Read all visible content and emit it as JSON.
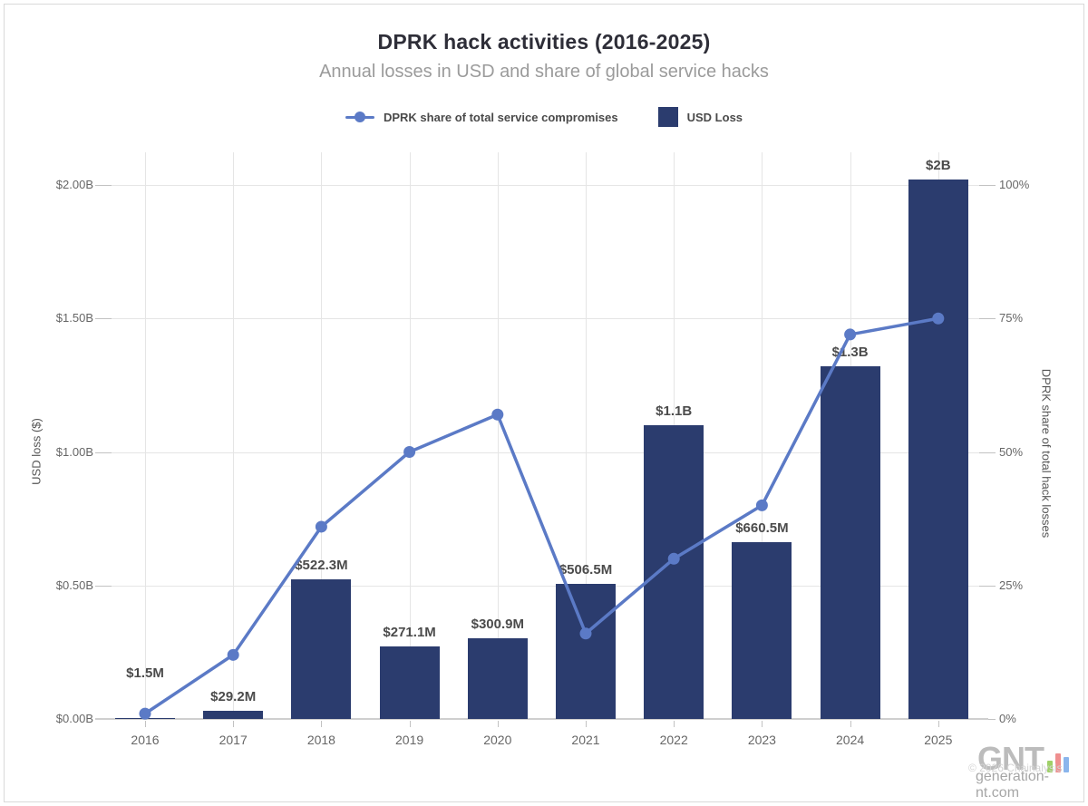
{
  "chart_data": {
    "type": "bar",
    "subtype": "combo-bar-line-dual-axis",
    "title": "DPRK hack activities (2016-2025)",
    "subtitle": "Annual losses in USD and share of global service hacks",
    "categories": [
      "2016",
      "2017",
      "2018",
      "2019",
      "2020",
      "2021",
      "2022",
      "2023",
      "2024",
      "2025"
    ],
    "series": [
      {
        "name": "DPRK share of total service compromises",
        "type": "line",
        "axis": "right",
        "color": "#5b7ac6",
        "values_percent": [
          1,
          12,
          36,
          50,
          57,
          16,
          30,
          40,
          72,
          75
        ]
      },
      {
        "name": "USD Loss",
        "type": "bar",
        "axis": "left",
        "color": "#2b3c6e",
        "values_usd_billions": [
          0.0015,
          0.0292,
          0.5223,
          0.2711,
          0.3009,
          0.5065,
          1.1,
          0.6605,
          1.32,
          2.02
        ],
        "point_labels": [
          "$1.5M",
          "$29.2M",
          "$522.3M",
          "$271.1M",
          "$300.9M",
          "$506.5M",
          "$1.1B",
          "$660.5M",
          "$1.3B",
          "$2B"
        ]
      }
    ],
    "left_axis": {
      "title": "USD loss ($)",
      "ticks": [
        "$0.00B",
        "$0.50B",
        "$1.00B",
        "$1.50B",
        "$2.00B"
      ],
      "range_usd_billions": [
        0,
        2.0
      ]
    },
    "right_axis": {
      "title": "DPRK share of total hack losses",
      "ticks": [
        "0%",
        "25%",
        "50%",
        "75%",
        "100%"
      ],
      "range_percent": [
        0,
        100
      ]
    },
    "grid": true,
    "legend_position": "top-center"
  },
  "colors": {
    "bar": "#2b3c6e",
    "line": "#5b7ac6",
    "title": "#2e2e38",
    "subtitle": "#9b9b9b",
    "tick_text": "#666666",
    "gridline": "#e5e5e5"
  },
  "watermark": {
    "logo_text": "GNT",
    "site": "generation-nt.com",
    "copyright": "© 2026 Chainalysis",
    "logo_bar_colors": [
      "#9fd068",
      "#ef8f8f",
      "#8ab5ec"
    ]
  }
}
